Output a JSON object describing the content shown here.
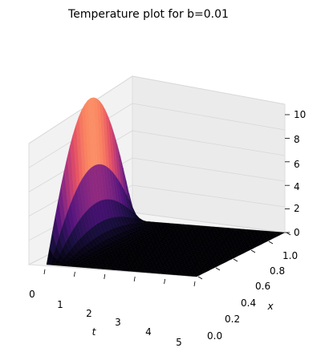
{
  "chart_data": {
    "type": "surface3d",
    "title": "Temperature plot for b=0.01",
    "xlabel": "t",
    "ylabel": "x",
    "zlabel": "",
    "t_ticks": [
      "0",
      "1",
      "2",
      "3",
      "4",
      "5"
    ],
    "x_ticks": [
      "0.0",
      "0.2",
      "0.4",
      "0.6",
      "0.8",
      "1.0"
    ],
    "z_ticks": [
      "0",
      "2",
      "4",
      "6",
      "8",
      "10"
    ],
    "t_range": [
      0,
      5
    ],
    "x_range": [
      0,
      1
    ],
    "z_range": [
      0,
      10
    ],
    "colormap": "magma",
    "grid": true,
    "surface_profile": {
      "t_edge_value_at_t0": "10*sin(pi*x)",
      "decay_description": "temperature drops rapidly to near zero for t > 0.5"
    }
  }
}
